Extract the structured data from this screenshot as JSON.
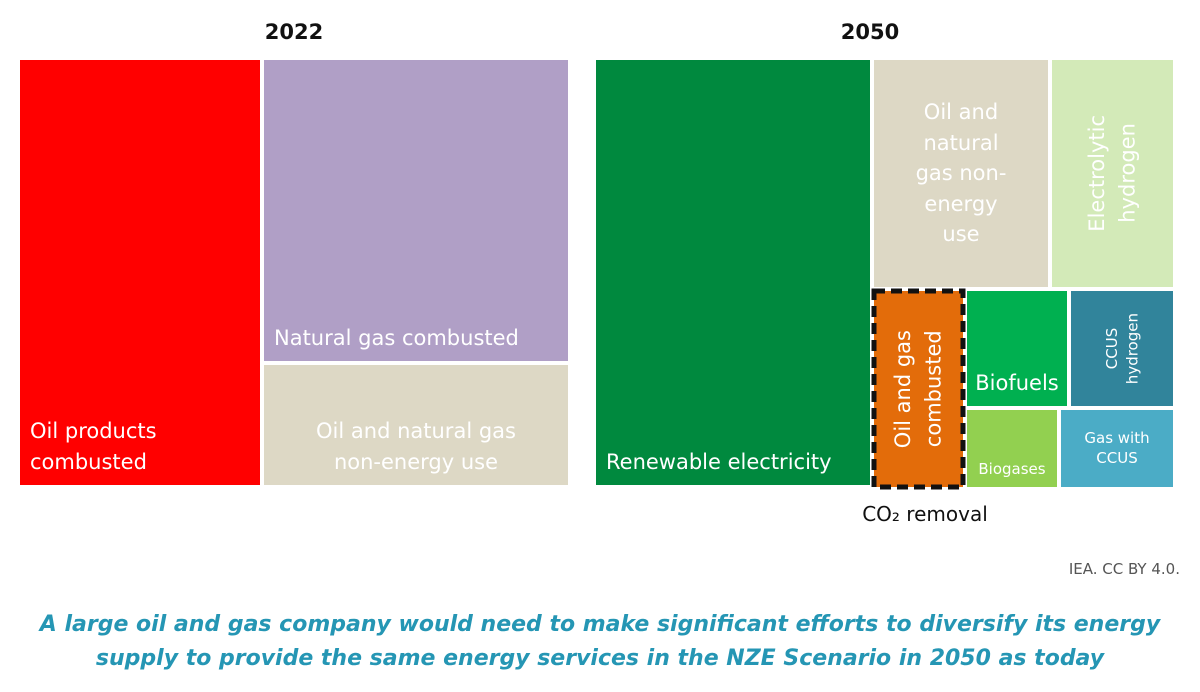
{
  "chart_data": [
    {
      "type": "treemap",
      "title": "2022",
      "items": [
        {
          "key": "oil_products",
          "label": "Oil products\ncombusted",
          "color": "#ff0000"
        },
        {
          "key": "natural_gas",
          "label": "Natural gas combusted",
          "color": "#b09fc6"
        },
        {
          "key": "non_energy",
          "label": "Oil and natural gas\nnon-energy use",
          "color": "#ddd8c5"
        }
      ]
    },
    {
      "type": "treemap",
      "title": "2050",
      "items": [
        {
          "key": "renewable",
          "label": "Renewable electricity",
          "color": "#00893e"
        },
        {
          "key": "non_energy",
          "label": "Oil and natural\ngas non-energy\nuse",
          "color": "#ddd8c5"
        },
        {
          "key": "electrolytic",
          "label": "Electrolytic\nhydrogen",
          "color": "#d3eab8"
        },
        {
          "key": "oil_gas",
          "label": "Oil and gas\ncombusted",
          "color": "#e36c0a",
          "highlight": "CO₂ removal"
        },
        {
          "key": "biofuels",
          "label": "Biofuels",
          "color": "#00b050"
        },
        {
          "key": "ccus_hydrogen",
          "label": "CCUS\nhydrogen",
          "color": "#31849b"
        },
        {
          "key": "biogases",
          "label": "Biogases",
          "color": "#92d050"
        },
        {
          "key": "gas_ccus",
          "label": "Gas with\nCCUS",
          "color": "#4bacc6"
        }
      ]
    }
  ],
  "annotation": "CO₂ removal",
  "source": "IEA. CC BY 4.0.",
  "caption": "A large oil and gas company would need to make significant efforts to diversify its energy\nsupply to provide the same energy services in the NZE Scenario in 2050 as today"
}
